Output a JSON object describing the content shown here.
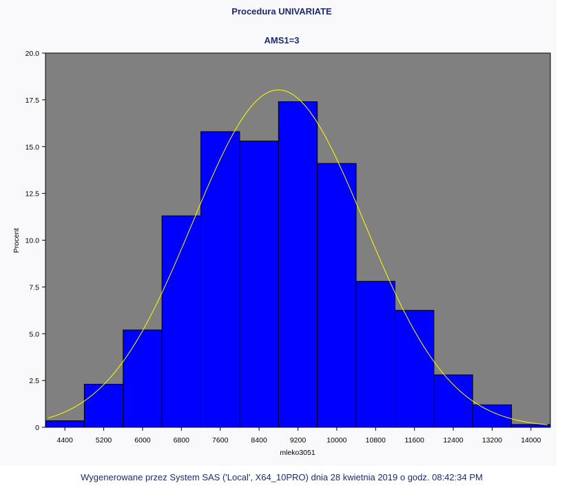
{
  "header": {
    "title": "Procedura UNIVARIATE",
    "subtitle": "AMS1=3"
  },
  "footer": {
    "text": "Wygenerowane przez System SAS ('Local', X64_10PRO) dnia 28 kwietnia 2019 o godz. 08:42:34 PM"
  },
  "colors": {
    "plot_background": "#808080",
    "bar_fill": "#0000ff",
    "bar_stroke": "#000000",
    "curve": "#ffff00",
    "title_text": "#1d2a6b"
  },
  "chart_data": {
    "type": "bar",
    "xlabel": "mleko3051",
    "ylabel": "Procent",
    "ylim": [
      0,
      20
    ],
    "yticks": [
      "0",
      "2.5",
      "5.0",
      "7.5",
      "10.0",
      "12.5",
      "15.0",
      "17.5",
      "20.0"
    ],
    "ytick_values": [
      0,
      2.5,
      5,
      7.5,
      10,
      12.5,
      15,
      17.5,
      20
    ],
    "bin_width": 800,
    "categories": [
      "4400",
      "5200",
      "6000",
      "6800",
      "7600",
      "8400",
      "9200",
      "10000",
      "10800",
      "11600",
      "12400",
      "13200",
      "14000"
    ],
    "values": [
      0.35,
      2.3,
      5.2,
      11.3,
      15.8,
      15.3,
      17.4,
      14.1,
      7.8,
      6.25,
      2.8,
      1.2,
      0.15
    ],
    "xlim": [
      4000,
      14400
    ],
    "grid": false,
    "legend": "none",
    "overlay_curve": {
      "type": "normal",
      "mean": 8800,
      "sd": 1770
    }
  }
}
